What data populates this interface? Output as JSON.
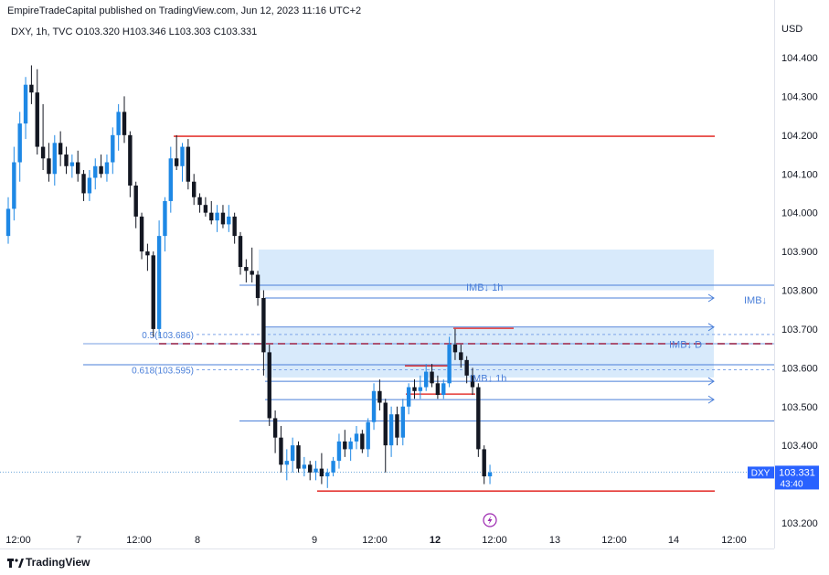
{
  "header": {
    "published": "EmpireTradeCapital published on TradingView.com, Jun 12, 2023 11:16 UTC+2",
    "symbol_line": "DXY, 1h, TVC  O103.320  H103.346  L103.303  C103.331"
  },
  "price_axis": {
    "currency": "USD"
  },
  "footer": {
    "brand": "TradingView"
  },
  "chart_data": {
    "type": "candlestick",
    "symbol": "DXY",
    "timeframe": "1h",
    "ohlc": {
      "open": 103.32,
      "high": 103.346,
      "low": 103.303,
      "close": 103.331
    },
    "y_ticks": [
      104.4,
      104.3,
      104.2,
      104.1,
      104.0,
      103.9,
      103.8,
      103.7,
      103.6,
      103.5,
      103.4,
      103.2
    ],
    "ylim": [
      103.16,
      104.46
    ],
    "x_ticks": [
      "12:00",
      "7",
      "12:00",
      "8",
      "9",
      "12:00",
      "12",
      "12:00",
      "13",
      "12:00",
      "14",
      "12:00"
    ],
    "current_price": {
      "symbol": "DXY",
      "value": "103.331",
      "countdown": "43:40"
    },
    "candles": [
      [
        103.94,
        104.04,
        103.92,
        104.01
      ],
      [
        104.01,
        104.17,
        103.98,
        104.13
      ],
      [
        104.13,
        104.26,
        104.08,
        104.23
      ],
      [
        104.23,
        104.35,
        104.19,
        104.33
      ],
      [
        104.33,
        104.38,
        104.28,
        104.31
      ],
      [
        104.31,
        104.37,
        104.15,
        104.17
      ],
      [
        104.17,
        104.28,
        104.11,
        104.14
      ],
      [
        104.14,
        104.18,
        104.08,
        104.1
      ],
      [
        104.1,
        104.2,
        104.07,
        104.18
      ],
      [
        104.18,
        104.21,
        104.12,
        104.15
      ],
      [
        104.15,
        104.17,
        104.1,
        104.12
      ],
      [
        104.12,
        104.15,
        104.09,
        104.13
      ],
      [
        104.13,
        104.16,
        104.08,
        104.1
      ],
      [
        104.1,
        104.11,
        104.03,
        104.05
      ],
      [
        104.05,
        104.11,
        104.03,
        104.09
      ],
      [
        104.09,
        104.14,
        104.06,
        104.12
      ],
      [
        104.12,
        104.15,
        104.09,
        104.1
      ],
      [
        104.1,
        104.15,
        104.08,
        104.13
      ],
      [
        104.13,
        104.22,
        104.1,
        104.2
      ],
      [
        104.2,
        104.28,
        104.16,
        104.26
      ],
      [
        104.26,
        104.3,
        104.18,
        104.2
      ],
      [
        104.2,
        104.21,
        104.04,
        104.07
      ],
      [
        104.07,
        104.08,
        103.96,
        103.99
      ],
      [
        103.99,
        104.0,
        103.88,
        103.9
      ],
      [
        103.9,
        103.92,
        103.85,
        103.89
      ],
      [
        103.89,
        103.9,
        103.68,
        103.7
      ],
      [
        103.7,
        103.98,
        103.68,
        103.94
      ],
      [
        103.94,
        104.04,
        103.9,
        104.03
      ],
      [
        104.03,
        104.17,
        104.0,
        104.14
      ],
      [
        104.14,
        104.2,
        104.11,
        104.12
      ],
      [
        104.12,
        104.18,
        104.08,
        104.17
      ],
      [
        104.17,
        104.19,
        104.06,
        104.08
      ],
      [
        104.08,
        104.1,
        104.02,
        104.04
      ],
      [
        104.04,
        104.05,
        104.0,
        104.02
      ],
      [
        104.02,
        104.04,
        103.99,
        104.0
      ],
      [
        104.0,
        104.03,
        103.97,
        103.98
      ],
      [
        103.98,
        104.02,
        103.95,
        104.0
      ],
      [
        104.0,
        104.02,
        103.96,
        103.97
      ],
      [
        103.97,
        104.02,
        103.95,
        103.99
      ],
      [
        103.99,
        104.0,
        103.92,
        103.94
      ],
      [
        103.94,
        103.95,
        103.84,
        103.86
      ],
      [
        103.86,
        103.88,
        103.82,
        103.85
      ],
      [
        103.85,
        103.91,
        103.82,
        103.84
      ],
      [
        103.84,
        103.85,
        103.76,
        103.78
      ],
      [
        103.78,
        103.8,
        103.58,
        103.64
      ],
      [
        103.64,
        103.66,
        103.45,
        103.47
      ],
      [
        103.47,
        103.49,
        103.38,
        103.42
      ],
      [
        103.42,
        103.45,
        103.33,
        103.35
      ],
      [
        103.35,
        103.39,
        103.31,
        103.36
      ],
      [
        103.36,
        103.42,
        103.33,
        103.4
      ],
      [
        103.4,
        103.41,
        103.33,
        103.34
      ],
      [
        103.34,
        103.37,
        103.32,
        103.35
      ],
      [
        103.35,
        103.36,
        103.31,
        103.33
      ],
      [
        103.33,
        103.36,
        103.31,
        103.34
      ],
      [
        103.34,
        103.38,
        103.3,
        103.32
      ],
      [
        103.32,
        103.34,
        103.29,
        103.33
      ],
      [
        103.33,
        103.37,
        103.32,
        103.36
      ],
      [
        103.36,
        103.43,
        103.34,
        103.41
      ],
      [
        103.41,
        103.44,
        103.37,
        103.39
      ],
      [
        103.39,
        103.42,
        103.36,
        103.41
      ],
      [
        103.41,
        103.45,
        103.39,
        103.43
      ],
      [
        103.43,
        103.44,
        103.38,
        103.39
      ],
      [
        103.39,
        103.47,
        103.37,
        103.46
      ],
      [
        103.46,
        103.56,
        103.44,
        103.54
      ],
      [
        103.54,
        103.57,
        103.49,
        103.51
      ],
      [
        103.51,
        103.52,
        103.33,
        103.4
      ],
      [
        103.4,
        103.5,
        103.37,
        103.48
      ],
      [
        103.48,
        103.5,
        103.4,
        103.42
      ],
      [
        103.42,
        103.52,
        103.4,
        103.5
      ],
      [
        103.5,
        103.56,
        103.48,
        103.55
      ],
      [
        103.55,
        103.57,
        103.52,
        103.54
      ],
      [
        103.54,
        103.58,
        103.52,
        103.55
      ],
      [
        103.55,
        103.61,
        103.54,
        103.59
      ],
      [
        103.59,
        103.61,
        103.55,
        103.56
      ],
      [
        103.56,
        103.58,
        103.52,
        103.53
      ],
      [
        103.53,
        103.57,
        103.52,
        103.56
      ],
      [
        103.56,
        103.68,
        103.55,
        103.66
      ],
      [
        103.66,
        103.7,
        103.62,
        103.64
      ],
      [
        103.64,
        103.66,
        103.6,
        103.62
      ],
      [
        103.62,
        103.63,
        103.56,
        103.58
      ],
      [
        103.58,
        103.6,
        103.53,
        103.55
      ],
      [
        103.55,
        103.56,
        103.37,
        103.39
      ],
      [
        103.39,
        103.4,
        103.3,
        103.32
      ],
      [
        103.32,
        103.35,
        103.3,
        103.33
      ]
    ],
    "zones": [
      {
        "type": "box",
        "y_top": 103.905,
        "y_bottom": 103.8
      },
      {
        "type": "box",
        "y_top": 103.703,
        "y_bottom": 103.575
      }
    ],
    "horizontal_lines": [
      {
        "price": 104.197,
        "color": "#e53935",
        "style": "solid"
      },
      {
        "price": 103.662,
        "color": "#e53935",
        "style": "dashed"
      },
      {
        "price": 103.282,
        "color": "#e53935",
        "style": "solid"
      },
      {
        "price": 103.813,
        "color": "#4a7fd9",
        "style": "solid"
      },
      {
        "price": 103.608,
        "color": "#4a7fd9",
        "style": "solid"
      },
      {
        "price": 103.463,
        "color": "#4a7fd9",
        "style": "solid"
      }
    ],
    "fib_levels": [
      {
        "label": "0.5(103.686)",
        "price": 103.686
      },
      {
        "label": "0.618(103.595)",
        "price": 103.595
      }
    ],
    "annotations": [
      {
        "text": "IMB↓ 1h",
        "price": 103.78
      },
      {
        "text": "IMB↓ D",
        "price": 103.633
      },
      {
        "text": "IMB↓ 1h",
        "price": 103.545
      },
      {
        "text": "IMB↓",
        "price": 103.785
      }
    ],
    "colors": {
      "bull": "#1e88e5",
      "bear": "#131722",
      "zone": "#d4e8fb",
      "red": "#e53935",
      "blue": "#4a7fd9"
    }
  }
}
